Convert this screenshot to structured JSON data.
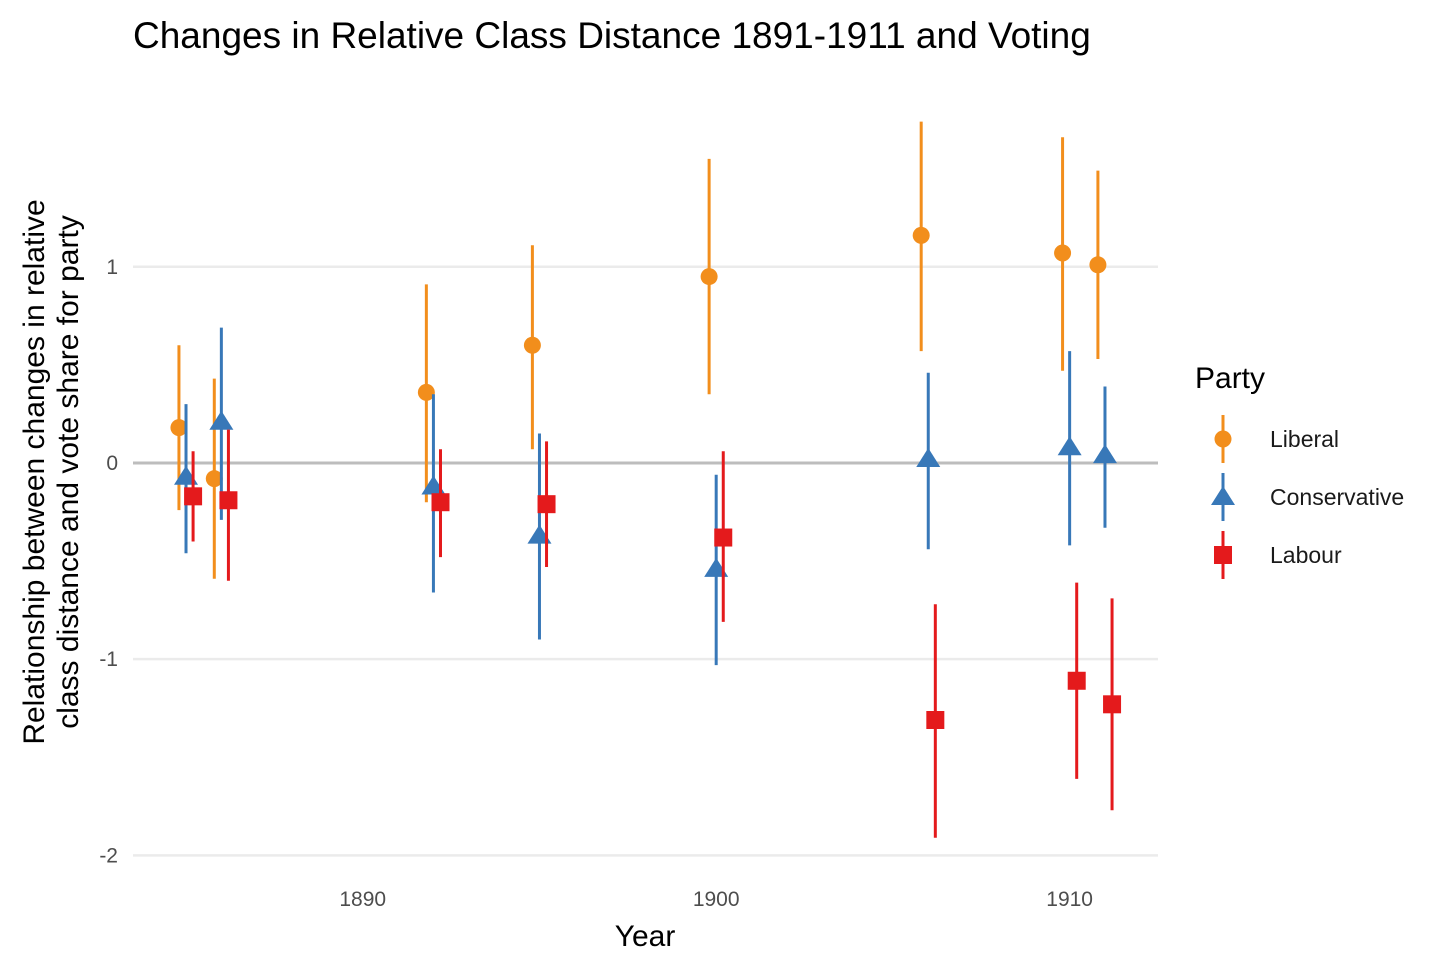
{
  "chart_data": {
    "type": "scatter",
    "title": "Changes in Relative Class Distance 1891-1911 and Voting",
    "xlabel": "Year",
    "ylabel": [
      "Relationship between changes in relative",
      "class distance and vote share for party"
    ],
    "xlim": [
      1883.5,
      1912.5
    ],
    "ylim": [
      -2.1,
      1.85
    ],
    "x_ticks": [
      1890,
      1900,
      1910
    ],
    "y_ticks": [
      -2,
      -1,
      0,
      1
    ],
    "zero_line": true,
    "grid": true,
    "legend": {
      "title": "Party",
      "position": "right",
      "entries": [
        "Liberal",
        "Conservative",
        "Labour"
      ]
    },
    "series": [
      {
        "name": "Liberal",
        "color": "#F28E1C",
        "shape": "circle",
        "points": [
          {
            "x": 1884.8,
            "y": 0.18,
            "lo": -0.24,
            "hi": 0.6
          },
          {
            "x": 1885.8,
            "y": -0.08,
            "lo": -0.59,
            "hi": 0.43
          },
          {
            "x": 1891.8,
            "y": 0.36,
            "lo": -0.2,
            "hi": 0.91
          },
          {
            "x": 1894.8,
            "y": 0.6,
            "lo": 0.07,
            "hi": 1.11
          },
          {
            "x": 1899.8,
            "y": 0.95,
            "lo": 0.35,
            "hi": 1.55
          },
          {
            "x": 1905.8,
            "y": 1.16,
            "lo": 0.57,
            "hi": 1.74
          },
          {
            "x": 1909.8,
            "y": 1.07,
            "lo": 0.47,
            "hi": 1.66
          },
          {
            "x": 1910.8,
            "y": 1.01,
            "lo": 0.53,
            "hi": 1.49
          }
        ]
      },
      {
        "name": "Conservative",
        "color": "#3878B8",
        "shape": "triangle",
        "points": [
          {
            "x": 1885.0,
            "y": -0.07,
            "lo": -0.46,
            "hi": 0.3
          },
          {
            "x": 1886.0,
            "y": 0.21,
            "lo": -0.29,
            "hi": 0.69
          },
          {
            "x": 1892.0,
            "y": -0.12,
            "lo": -0.66,
            "hi": 0.35
          },
          {
            "x": 1895.0,
            "y": -0.37,
            "lo": -0.9,
            "hi": 0.15
          },
          {
            "x": 1900.0,
            "y": -0.54,
            "lo": -1.03,
            "hi": -0.06
          },
          {
            "x": 1906.0,
            "y": 0.02,
            "lo": -0.44,
            "hi": 0.46
          },
          {
            "x": 1910.0,
            "y": 0.08,
            "lo": -0.42,
            "hi": 0.57
          },
          {
            "x": 1911.0,
            "y": 0.04,
            "lo": -0.33,
            "hi": 0.39
          }
        ]
      },
      {
        "name": "Labour",
        "color": "#E41A1C",
        "shape": "square",
        "points": [
          {
            "x": 1885.2,
            "y": -0.17,
            "lo": -0.4,
            "hi": 0.06
          },
          {
            "x": 1886.2,
            "y": -0.19,
            "lo": -0.6,
            "hi": 0.17
          },
          {
            "x": 1892.2,
            "y": -0.2,
            "lo": -0.48,
            "hi": 0.07
          },
          {
            "x": 1895.2,
            "y": -0.21,
            "lo": -0.53,
            "hi": 0.11
          },
          {
            "x": 1900.2,
            "y": -0.38,
            "lo": -0.81,
            "hi": 0.06
          },
          {
            "x": 1906.2,
            "y": -1.31,
            "lo": -1.91,
            "hi": -0.72
          },
          {
            "x": 1910.2,
            "y": -1.11,
            "lo": -1.61,
            "hi": -0.61
          },
          {
            "x": 1911.2,
            "y": -1.23,
            "lo": -1.77,
            "hi": -0.69
          }
        ]
      }
    ]
  }
}
